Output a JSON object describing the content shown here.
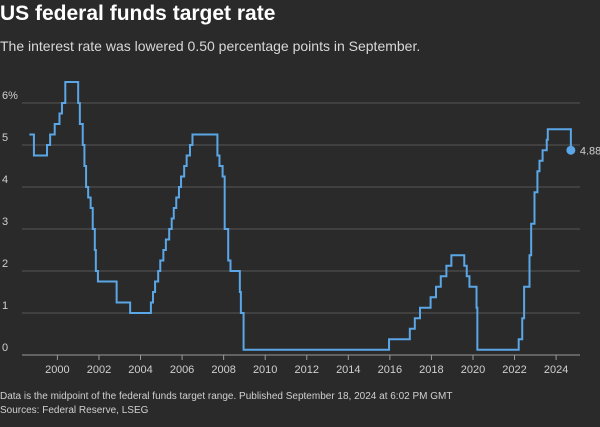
{
  "chart_data": {
    "type": "step",
    "title": "US federal funds target rate",
    "subtitle": "The interest rate was lowered 0.50 percentage points in September.",
    "notes": "Data is the midpoint of the federal funds target range. Published September 18, 2024 at 6:02 PM GMT",
    "source": "Sources: Federal Reserve, LSEG",
    "x": [
      1998.65,
      1998.87,
      1999.5,
      1999.65,
      1999.87,
      2000.1,
      2000.22,
      2000.38,
      2001.0,
      2001.08,
      2001.22,
      2001.3,
      2001.38,
      2001.48,
      2001.6,
      2001.7,
      2001.8,
      2001.85,
      2001.95,
      2002.85,
      2003.5,
      2004.5,
      2004.6,
      2004.7,
      2004.85,
      2004.95,
      2005.1,
      2005.22,
      2005.38,
      2005.5,
      2005.6,
      2005.72,
      2005.85,
      2005.95,
      2006.1,
      2006.22,
      2006.38,
      2006.5,
      2007.7,
      2007.8,
      2007.95,
      2008.05,
      2008.22,
      2008.33,
      2008.78,
      2008.83,
      2008.96,
      2015.96,
      2016.96,
      2017.2,
      2017.45,
      2017.96,
      2018.22,
      2018.45,
      2018.72,
      2018.96,
      2019.58,
      2019.7,
      2019.83,
      2020.17,
      2020.21,
      2022.2,
      2022.37,
      2022.46,
      2022.72,
      2022.8,
      2022.96,
      2023.1,
      2023.2,
      2023.35,
      2023.55,
      2023.6,
      2024.71
    ],
    "series": [
      {
        "name": "Federal funds target rate",
        "color": "#5aa6e6",
        "values": [
          5.25,
          4.75,
          5.0,
          5.25,
          5.5,
          5.75,
          6.0,
          6.5,
          6.0,
          5.5,
          5.0,
          4.5,
          4.0,
          3.75,
          3.5,
          3.0,
          2.5,
          2.0,
          1.75,
          1.25,
          1.0,
          1.25,
          1.5,
          1.75,
          2.0,
          2.25,
          2.5,
          2.75,
          3.0,
          3.25,
          3.5,
          3.75,
          4.0,
          4.25,
          4.5,
          4.75,
          5.0,
          5.25,
          4.75,
          4.5,
          4.25,
          3.0,
          2.25,
          2.0,
          1.5,
          1.0,
          0.125,
          0.375,
          0.625,
          0.875,
          1.125,
          1.375,
          1.625,
          1.875,
          2.125,
          2.375,
          2.125,
          1.875,
          1.625,
          1.125,
          0.125,
          0.375,
          0.875,
          1.625,
          2.375,
          3.125,
          3.875,
          4.375,
          4.625,
          4.875,
          5.125,
          5.375,
          4.875
        ],
        "value_labels": [
          null,
          null,
          null,
          null,
          null,
          null,
          null,
          null,
          null,
          null,
          null,
          null,
          null,
          null,
          null,
          null,
          null,
          null,
          null,
          null,
          null,
          null,
          null,
          null,
          null,
          null,
          null,
          null,
          null,
          null,
          null,
          null,
          null,
          null,
          null,
          null,
          null,
          null,
          null,
          null,
          null,
          null,
          null,
          null,
          null,
          null,
          null,
          null,
          null,
          null,
          null,
          null,
          null,
          null,
          null,
          null,
          null,
          null,
          null,
          null,
          null,
          null,
          null,
          null,
          null,
          null,
          null,
          null,
          null,
          null,
          null,
          null,
          "4.88"
        ]
      }
    ],
    "xlim": [
      1998.2,
      2025.15
    ],
    "xticks": [
      2000,
      2002,
      2004,
      2006,
      2008,
      2010,
      2012,
      2014,
      2016,
      2018,
      2020,
      2022,
      2024
    ],
    "ylim": [
      0,
      6.8
    ],
    "yticks": [
      0,
      1,
      2,
      3,
      4,
      5,
      {
        "value": 6,
        "label": "6%"
      }
    ],
    "grid": true
  }
}
